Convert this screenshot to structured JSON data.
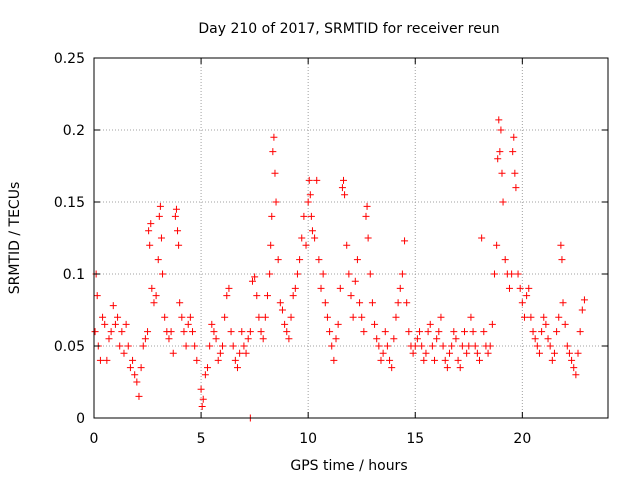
{
  "chart_data": {
    "type": "scatter",
    "title": "Day 210 of 2017, SRMTID for receiver reun",
    "xlabel": "GPS time / hours",
    "ylabel": "SRMTID / TECUs",
    "xlim": [
      0,
      24
    ],
    "ylim": [
      0,
      0.25
    ],
    "xticks": [
      0,
      5,
      10,
      15,
      20
    ],
    "xtick_labels": [
      "0",
      "5",
      "10",
      "15",
      "20"
    ],
    "yticks": [
      0,
      0.05,
      0.1,
      0.15,
      0.2,
      0.25
    ],
    "ytick_labels": [
      "0",
      "0.05",
      "0.1",
      "0.15",
      "0.2",
      "0.25"
    ],
    "grid": true,
    "marker": "+",
    "series_color": "#ff0000",
    "series": [
      {
        "name": "SRMTID",
        "points": [
          [
            0.05,
            0.06
          ],
          [
            0.1,
            0.1
          ],
          [
            0.15,
            0.085
          ],
          [
            0.2,
            0.05
          ],
          [
            0.3,
            0.04
          ],
          [
            0.4,
            0.07
          ],
          [
            0.5,
            0.065
          ],
          [
            0.6,
            0.04
          ],
          [
            0.7,
            0.055
          ],
          [
            0.8,
            0.06
          ],
          [
            0.9,
            0.078
          ],
          [
            1.0,
            0.065
          ],
          [
            1.1,
            0.07
          ],
          [
            1.2,
            0.05
          ],
          [
            1.3,
            0.06
          ],
          [
            1.4,
            0.045
          ],
          [
            1.5,
            0.065
          ],
          [
            1.6,
            0.05
          ],
          [
            1.7,
            0.035
          ],
          [
            1.8,
            0.04
          ],
          [
            1.9,
            0.03
          ],
          [
            2.0,
            0.025
          ],
          [
            2.1,
            0.015
          ],
          [
            2.2,
            0.035
          ],
          [
            2.3,
            0.05
          ],
          [
            2.4,
            0.055
          ],
          [
            2.5,
            0.06
          ],
          [
            2.55,
            0.13
          ],
          [
            2.6,
            0.12
          ],
          [
            2.65,
            0.135
          ],
          [
            2.7,
            0.09
          ],
          [
            2.8,
            0.08
          ],
          [
            2.9,
            0.085
          ],
          [
            3.0,
            0.11
          ],
          [
            3.05,
            0.14
          ],
          [
            3.1,
            0.147
          ],
          [
            3.15,
            0.125
          ],
          [
            3.2,
            0.1
          ],
          [
            3.3,
            0.07
          ],
          [
            3.4,
            0.06
          ],
          [
            3.5,
            0.055
          ],
          [
            3.6,
            0.06
          ],
          [
            3.7,
            0.045
          ],
          [
            3.8,
            0.14
          ],
          [
            3.85,
            0.145
          ],
          [
            3.9,
            0.13
          ],
          [
            3.95,
            0.12
          ],
          [
            4.0,
            0.08
          ],
          [
            4.1,
            0.07
          ],
          [
            4.2,
            0.06
          ],
          [
            4.3,
            0.05
          ],
          [
            4.4,
            0.065
          ],
          [
            4.5,
            0.07
          ],
          [
            4.6,
            0.06
          ],
          [
            4.7,
            0.05
          ],
          [
            4.8,
            0.04
          ],
          [
            5.0,
            0.02
          ],
          [
            5.05,
            0.008
          ],
          [
            5.1,
            0.013
          ],
          [
            5.2,
            0.03
          ],
          [
            5.3,
            0.035
          ],
          [
            5.4,
            0.05
          ],
          [
            5.5,
            0.065
          ],
          [
            5.6,
            0.06
          ],
          [
            5.7,
            0.055
          ],
          [
            5.8,
            0.04
          ],
          [
            5.9,
            0.045
          ],
          [
            6.0,
            0.05
          ],
          [
            6.1,
            0.07
          ],
          [
            6.2,
            0.085
          ],
          [
            6.3,
            0.09
          ],
          [
            6.4,
            0.06
          ],
          [
            6.5,
            0.05
          ],
          [
            6.6,
            0.04
          ],
          [
            6.7,
            0.035
          ],
          [
            6.8,
            0.045
          ],
          [
            6.9,
            0.06
          ],
          [
            7.0,
            0.05
          ],
          [
            7.1,
            0.045
          ],
          [
            7.2,
            0.055
          ],
          [
            7.3,
            0.06
          ],
          [
            7.4,
            0.095
          ],
          [
            7.5,
            0.098
          ],
          [
            7.6,
            0.085
          ],
          [
            7.7,
            0.07
          ],
          [
            7.8,
            0.06
          ],
          [
            7.9,
            0.055
          ],
          [
            8.0,
            0.07
          ],
          [
            8.1,
            0.085
          ],
          [
            8.2,
            0.1
          ],
          [
            8.25,
            0.12
          ],
          [
            8.3,
            0.14
          ],
          [
            8.35,
            0.185
          ],
          [
            8.4,
            0.195
          ],
          [
            8.45,
            0.17
          ],
          [
            8.5,
            0.15
          ],
          [
            8.6,
            0.11
          ],
          [
            8.7,
            0.08
          ],
          [
            8.8,
            0.075
          ],
          [
            8.9,
            0.065
          ],
          [
            9.0,
            0.06
          ],
          [
            9.1,
            0.055
          ],
          [
            9.2,
            0.07
          ],
          [
            9.3,
            0.085
          ],
          [
            9.4,
            0.09
          ],
          [
            9.5,
            0.1
          ],
          [
            9.6,
            0.11
          ],
          [
            9.7,
            0.125
          ],
          [
            9.8,
            0.14
          ],
          [
            9.9,
            0.12
          ],
          [
            10.0,
            0.15
          ],
          [
            10.05,
            0.165
          ],
          [
            10.1,
            0.155
          ],
          [
            10.15,
            0.14
          ],
          [
            10.2,
            0.13
          ],
          [
            10.3,
            0.125
          ],
          [
            10.4,
            0.165
          ],
          [
            10.5,
            0.11
          ],
          [
            10.6,
            0.09
          ],
          [
            10.7,
            0.1
          ],
          [
            10.8,
            0.08
          ],
          [
            10.9,
            0.07
          ],
          [
            11.0,
            0.06
          ],
          [
            11.1,
            0.05
          ],
          [
            11.2,
            0.04
          ],
          [
            11.3,
            0.055
          ],
          [
            11.4,
            0.065
          ],
          [
            11.5,
            0.09
          ],
          [
            11.6,
            0.16
          ],
          [
            11.65,
            0.165
          ],
          [
            11.7,
            0.155
          ],
          [
            11.8,
            0.12
          ],
          [
            11.9,
            0.1
          ],
          [
            12.0,
            0.085
          ],
          [
            12.1,
            0.07
          ],
          [
            12.2,
            0.095
          ],
          [
            12.3,
            0.11
          ],
          [
            12.4,
            0.08
          ],
          [
            12.5,
            0.07
          ],
          [
            12.6,
            0.06
          ],
          [
            12.7,
            0.14
          ],
          [
            12.75,
            0.147
          ],
          [
            12.8,
            0.125
          ],
          [
            12.9,
            0.1
          ],
          [
            13.0,
            0.08
          ],
          [
            13.1,
            0.065
          ],
          [
            13.2,
            0.055
          ],
          [
            13.3,
            0.05
          ],
          [
            13.4,
            0.04
          ],
          [
            13.5,
            0.045
          ],
          [
            13.6,
            0.06
          ],
          [
            13.7,
            0.05
          ],
          [
            13.8,
            0.04
          ],
          [
            13.9,
            0.035
          ],
          [
            14.0,
            0.055
          ],
          [
            14.1,
            0.07
          ],
          [
            14.2,
            0.08
          ],
          [
            14.3,
            0.09
          ],
          [
            14.4,
            0.1
          ],
          [
            14.5,
            0.123
          ],
          [
            14.6,
            0.08
          ],
          [
            14.7,
            0.06
          ],
          [
            14.8,
            0.05
          ],
          [
            14.9,
            0.045
          ],
          [
            15.0,
            0.05
          ],
          [
            15.1,
            0.055
          ],
          [
            15.2,
            0.06
          ],
          [
            15.3,
            0.05
          ],
          [
            15.4,
            0.04
          ],
          [
            15.5,
            0.045
          ],
          [
            15.6,
            0.06
          ],
          [
            15.7,
            0.065
          ],
          [
            15.8,
            0.05
          ],
          [
            15.9,
            0.04
          ],
          [
            16.0,
            0.055
          ],
          [
            16.1,
            0.06
          ],
          [
            16.2,
            0.07
          ],
          [
            16.3,
            0.05
          ],
          [
            16.4,
            0.04
          ],
          [
            16.5,
            0.035
          ],
          [
            16.6,
            0.045
          ],
          [
            16.7,
            0.05
          ],
          [
            16.8,
            0.06
          ],
          [
            16.9,
            0.055
          ],
          [
            17.0,
            0.04
          ],
          [
            17.1,
            0.035
          ],
          [
            17.2,
            0.05
          ],
          [
            17.3,
            0.06
          ],
          [
            17.4,
            0.045
          ],
          [
            17.5,
            0.05
          ],
          [
            17.6,
            0.07
          ],
          [
            17.7,
            0.06
          ],
          [
            17.8,
            0.05
          ],
          [
            17.9,
            0.045
          ],
          [
            18.0,
            0.04
          ],
          [
            18.1,
            0.125
          ],
          [
            18.2,
            0.06
          ],
          [
            18.3,
            0.05
          ],
          [
            18.4,
            0.045
          ],
          [
            18.5,
            0.05
          ],
          [
            18.6,
            0.065
          ],
          [
            18.7,
            0.1
          ],
          [
            18.8,
            0.12
          ],
          [
            18.85,
            0.18
          ],
          [
            18.9,
            0.207
          ],
          [
            18.95,
            0.185
          ],
          [
            19.0,
            0.2
          ],
          [
            19.05,
            0.17
          ],
          [
            19.1,
            0.15
          ],
          [
            19.2,
            0.11
          ],
          [
            19.3,
            0.1
          ],
          [
            19.4,
            0.09
          ],
          [
            19.5,
            0.1
          ],
          [
            19.55,
            0.185
          ],
          [
            19.6,
            0.195
          ],
          [
            19.65,
            0.17
          ],
          [
            19.7,
            0.16
          ],
          [
            19.8,
            0.1
          ],
          [
            19.9,
            0.09
          ],
          [
            20.0,
            0.08
          ],
          [
            20.1,
            0.07
          ],
          [
            20.2,
            0.085
          ],
          [
            20.3,
            0.09
          ],
          [
            20.4,
            0.07
          ],
          [
            20.5,
            0.06
          ],
          [
            20.6,
            0.055
          ],
          [
            20.7,
            0.05
          ],
          [
            20.8,
            0.045
          ],
          [
            20.9,
            0.06
          ],
          [
            21.0,
            0.07
          ],
          [
            21.1,
            0.065
          ],
          [
            21.2,
            0.055
          ],
          [
            21.3,
            0.05
          ],
          [
            21.4,
            0.04
          ],
          [
            21.5,
            0.045
          ],
          [
            21.6,
            0.06
          ],
          [
            21.7,
            0.07
          ],
          [
            21.8,
            0.12
          ],
          [
            21.85,
            0.11
          ],
          [
            21.9,
            0.08
          ],
          [
            22.0,
            0.065
          ],
          [
            22.1,
            0.05
          ],
          [
            22.2,
            0.045
          ],
          [
            22.3,
            0.04
          ],
          [
            22.4,
            0.035
          ],
          [
            22.5,
            0.03
          ],
          [
            22.6,
            0.045
          ],
          [
            22.7,
            0.06
          ],
          [
            22.8,
            0.075
          ],
          [
            22.9,
            0.082
          ],
          [
            7.3,
            0.0
          ]
        ]
      }
    ]
  }
}
